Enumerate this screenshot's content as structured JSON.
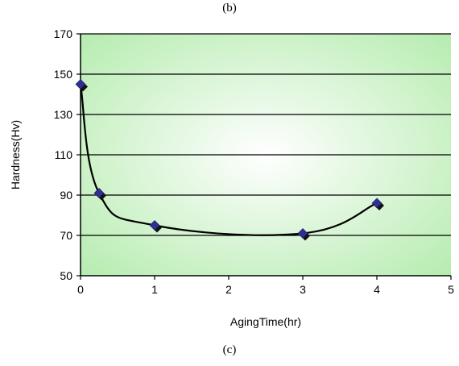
{
  "labels": {
    "top": "(b)",
    "bottom": "(c)"
  },
  "colors": {
    "plot_center": "#ffffff",
    "plot_edge": "#b6ecb0",
    "gridline": "#000000",
    "curve": "#000000",
    "marker_fill": "#2e3192",
    "marker_shadow": "#111111"
  },
  "chart_data": {
    "type": "scatter",
    "xlabel": "AgingTime(hr)",
    "ylabel": "Hardness(Hv)",
    "xlim": [
      0,
      5
    ],
    "ylim": [
      50,
      170
    ],
    "x_ticks": [
      "0",
      "1",
      "2",
      "3",
      "4",
      "5"
    ],
    "y_ticks": [
      "50",
      "70",
      "90",
      "110",
      "130",
      "150",
      "170"
    ],
    "grid": "horizontal",
    "legend": "none",
    "points": [
      {
        "x": 0,
        "y": 145
      },
      {
        "x": 0.25,
        "y": 91
      },
      {
        "x": 1,
        "y": 75
      },
      {
        "x": 3,
        "y": 71
      },
      {
        "x": 4,
        "y": 86
      }
    ],
    "smoothed_line": true
  }
}
